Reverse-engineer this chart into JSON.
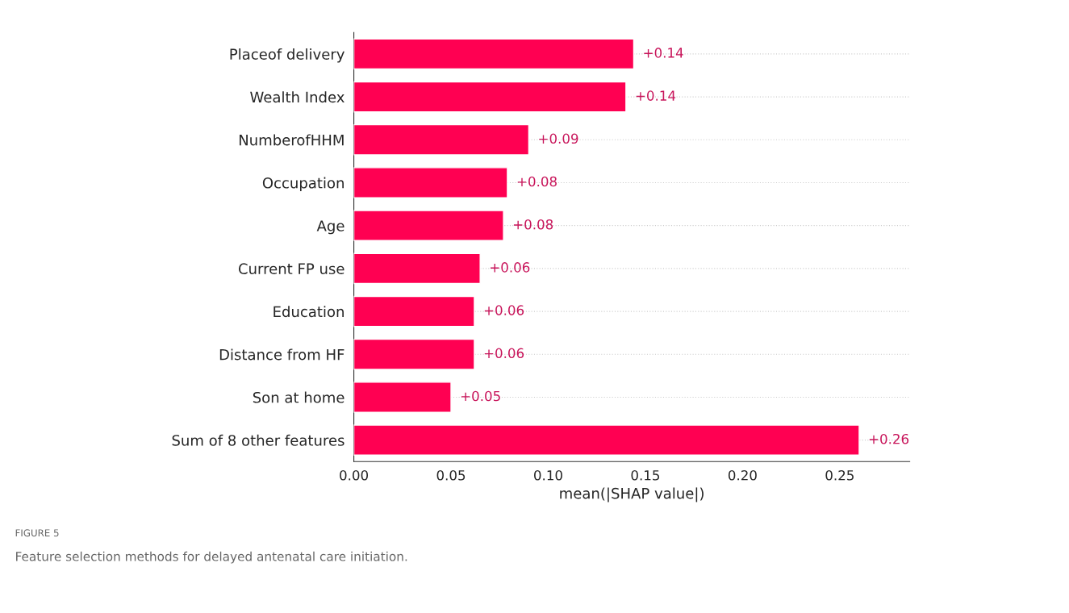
{
  "chart_data": {
    "type": "bar",
    "orientation": "horizontal",
    "xlabel": "mean(|SHAP value|)",
    "categories": [
      "Placeof delivery",
      "Wealth Index",
      "NumberofHHM",
      "Occupation",
      "Age",
      "Current FP use",
      "Education",
      "Distance from HF",
      "Son at home",
      "Sum of 8 other features"
    ],
    "values": [
      0.144,
      0.14,
      0.09,
      0.079,
      0.077,
      0.065,
      0.062,
      0.062,
      0.05,
      0.26
    ],
    "value_labels": [
      "+0.14",
      "+0.14",
      "+0.09",
      "+0.08",
      "+0.08",
      "+0.06",
      "+0.06",
      "+0.06",
      "+0.05",
      "+0.26"
    ],
    "color": "#ff0052",
    "xlim": [
      0,
      0.286
    ],
    "xticks": [
      {
        "value": 0,
        "label": "0.00"
      },
      {
        "value": 0.05,
        "label": "0.05"
      },
      {
        "value": 0.1,
        "label": "0.10"
      },
      {
        "value": 0.15,
        "label": "0.15"
      },
      {
        "value": 0.2,
        "label": "0.20"
      },
      {
        "value": 0.25,
        "label": "0.25"
      }
    ],
    "grid": "y",
    "annotations": [
      "FIGURE 5",
      "Feature selection methods for delayed antenatal care initiation."
    ]
  }
}
